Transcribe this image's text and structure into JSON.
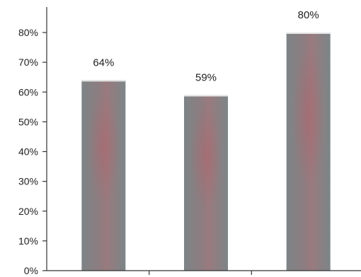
{
  "chart_data": {
    "type": "bar",
    "categories": [
      "",
      "",
      ""
    ],
    "values": [
      64,
      59,
      80
    ],
    "data_labels": [
      "64%",
      "59%",
      "80%"
    ],
    "title": "",
    "xlabel": "",
    "ylabel": "",
    "ylim": [
      0,
      80
    ],
    "yticks": [
      {
        "value": 0,
        "label": "0%"
      },
      {
        "value": 10,
        "label": "10%"
      },
      {
        "value": 20,
        "label": "20%"
      },
      {
        "value": 30,
        "label": "30%"
      },
      {
        "value": 40,
        "label": "40%"
      },
      {
        "value": 50,
        "label": "50%"
      },
      {
        "value": 60,
        "label": "60%"
      },
      {
        "value": 70,
        "label": "70%"
      },
      {
        "value": 80,
        "label": "80%"
      }
    ],
    "grid": false,
    "legend": "none",
    "bar_color": "#7f8486",
    "bar_tint": "#b06a72"
  }
}
